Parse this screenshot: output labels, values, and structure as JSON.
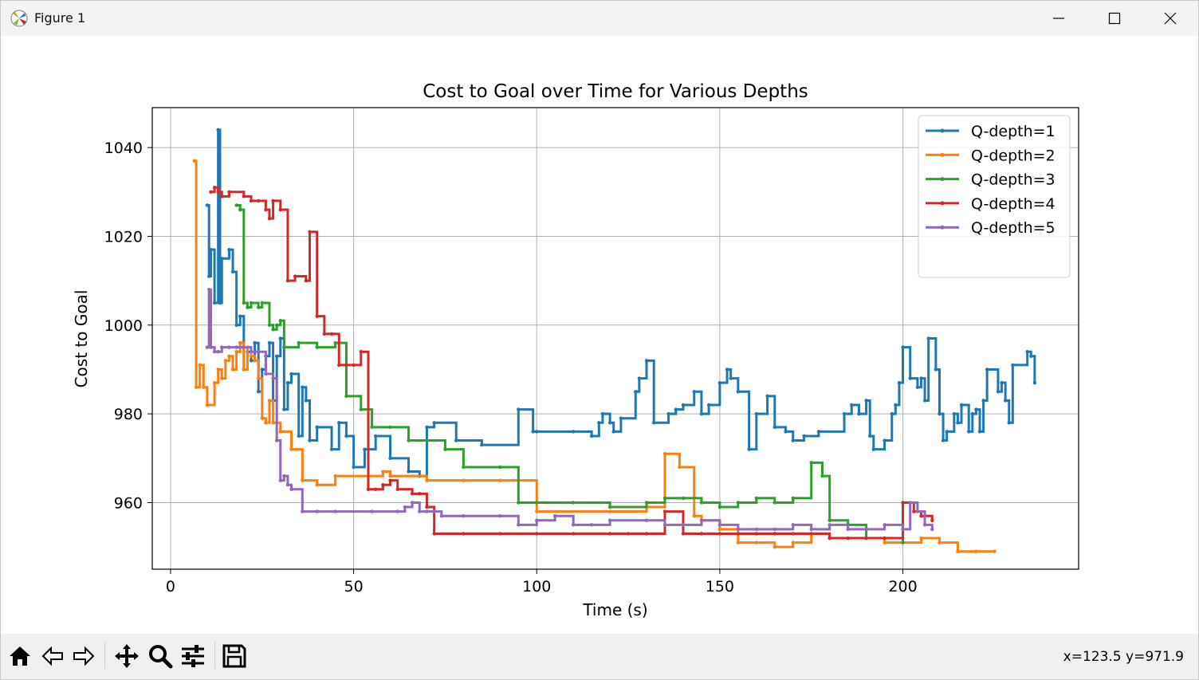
{
  "window": {
    "title": "Figure 1",
    "icons": {
      "app": "matplotlib-icon",
      "minimize": "minimize-icon",
      "maximize": "maximize-icon",
      "close": "close-icon"
    }
  },
  "toolbar": {
    "buttons": [
      "home-icon",
      "back-icon",
      "forward-icon",
      "pan-icon",
      "zoom-icon",
      "configure-subplots-icon",
      "save-icon"
    ],
    "coords": "x=123.5 y=971.9"
  },
  "chart_data": {
    "type": "line",
    "title": "Cost to Goal over Time for Various Depths",
    "xlabel": "Time (s)",
    "ylabel": "Cost to Goal",
    "xlim": [
      -5,
      248
    ],
    "ylim": [
      945,
      1049
    ],
    "xticks": [
      0,
      50,
      100,
      150,
      200
    ],
    "yticks": [
      960,
      980,
      1000,
      1020,
      1040
    ],
    "grid": true,
    "legend_position": "upper right",
    "step": true,
    "series": [
      {
        "name": "Q-depth=1",
        "color": "#1f77b4",
        "x": [
          10,
          10.5,
          11,
          12,
          13,
          13.5,
          14,
          16,
          17,
          18,
          19,
          20,
          21,
          22,
          23,
          24,
          25,
          26,
          27,
          28,
          29,
          30,
          31,
          32,
          33,
          35,
          36,
          37,
          38,
          40,
          44,
          46,
          48,
          50,
          53,
          56,
          60,
          65,
          68,
          70,
          72,
          78,
          85,
          95,
          99,
          100,
          110,
          115,
          117,
          118,
          120,
          121,
          123,
          127,
          128,
          130,
          132,
          136,
          138,
          140,
          143,
          145,
          147,
          150,
          152,
          153,
          155,
          158,
          160,
          163,
          165,
          168,
          170,
          173,
          177,
          184,
          186,
          188,
          190,
          191,
          192,
          195,
          197,
          198,
          199,
          200,
          202,
          204,
          205,
          206,
          207,
          209,
          210,
          211,
          212,
          214,
          215,
          216,
          218,
          219,
          220,
          221,
          222,
          223,
          226,
          227,
          228,
          229,
          230,
          234,
          235,
          236
        ],
        "y": [
          1027,
          1011,
          1017,
          1005,
          1044,
          1005,
          1015,
          1017,
          1012,
          1000,
          1002,
          990,
          994,
          992,
          996,
          985,
          990,
          993,
          996,
          983,
          993,
          997,
          981,
          987,
          989,
          975,
          986,
          983,
          974,
          977,
          972,
          978,
          975,
          968,
          972,
          975,
          970,
          967,
          966,
          977,
          978,
          974,
          973,
          981,
          976,
          976,
          976,
          975,
          978,
          980,
          978,
          976,
          979,
          985,
          988,
          992,
          978,
          980,
          981,
          982,
          985,
          980,
          982,
          987,
          990,
          988,
          985,
          972,
          980,
          984,
          977,
          976,
          974,
          975,
          976,
          980,
          982,
          980,
          983,
          975,
          972,
          974,
          980,
          982,
          987,
          995,
          988,
          986,
          988,
          983,
          997,
          990,
          980,
          974,
          976,
          980,
          978,
          982,
          976,
          980,
          981,
          976,
          983,
          990,
          985,
          987,
          983,
          978,
          991,
          994,
          993,
          987
        ]
      },
      {
        "name": "Q-depth=2",
        "color": "#ff7f0e",
        "x": [
          6.5,
          7,
          8,
          9,
          10,
          12,
          13,
          14,
          15,
          16,
          17,
          18,
          19,
          20,
          21,
          22,
          23,
          24,
          25,
          26,
          27,
          28,
          30,
          33,
          36,
          40,
          45,
          58,
          60,
          70,
          80,
          90,
          95,
          100,
          120,
          130,
          135,
          139,
          143,
          145,
          150,
          155,
          160,
          165,
          170,
          175,
          180,
          190,
          195,
          200,
          205,
          210,
          215,
          220,
          225
        ],
        "y": [
          1037,
          986,
          991,
          986,
          982,
          987,
          990,
          988,
          992,
          993,
          990,
          994,
          996,
          990,
          995,
          993,
          992,
          988,
          979,
          978,
          983,
          978,
          976,
          972,
          965,
          964,
          966,
          967,
          966,
          965,
          965,
          965,
          965,
          958,
          958,
          959,
          971,
          968,
          957,
          956,
          954,
          951,
          951,
          950,
          951,
          953,
          952,
          952,
          951,
          951,
          952,
          951,
          949,
          949,
          949
        ]
      },
      {
        "name": "Q-depth=3",
        "color": "#2ca02c",
        "x": [
          18,
          19,
          20,
          21,
          22,
          24,
          25,
          27,
          28,
          29,
          30,
          31,
          35,
          40,
          45,
          48,
          52,
          55,
          60,
          65,
          70,
          75,
          80,
          90,
          95,
          100,
          110,
          120,
          130,
          135,
          140,
          145,
          150,
          155,
          160,
          165,
          170,
          175,
          178,
          180,
          185,
          190,
          195,
          200
        ],
        "y": [
          1027,
          1026,
          1005,
          1004,
          1005,
          1004,
          1005,
          1000,
          999,
          1000,
          1001,
          995,
          996,
          995,
          996,
          984,
          981,
          977,
          977,
          974,
          974,
          972,
          968,
          968,
          960,
          960,
          960,
          959,
          960,
          961,
          961,
          960,
          959,
          960,
          961,
          960,
          961,
          969,
          966,
          956,
          955,
          952,
          952,
          951
        ]
      },
      {
        "name": "Q-depth=4",
        "color": "#d62728",
        "x": [
          11,
          12,
          13,
          14,
          16,
          20,
          22,
          24,
          26,
          27,
          28,
          30,
          32,
          34,
          37,
          38,
          40,
          42,
          44,
          46,
          48,
          50,
          52,
          54,
          56,
          58,
          60,
          62,
          66,
          68,
          70,
          72,
          80,
          90,
          100,
          110,
          120,
          125,
          130,
          135,
          140,
          145,
          150,
          155,
          160,
          165,
          170,
          175,
          180,
          185,
          190,
          195,
          200,
          203,
          205,
          208
        ],
        "y": [
          1030,
          1031,
          1030,
          1029,
          1030,
          1029,
          1028,
          1028,
          1026,
          1024,
          1028,
          1026,
          1010,
          1011,
          1010,
          1021,
          1002,
          998,
          998,
          991,
          991,
          991,
          994,
          963,
          963,
          964,
          965,
          963,
          962,
          962,
          959,
          953,
          953,
          953,
          953,
          953,
          953,
          953,
          953,
          958,
          953,
          953,
          953,
          953,
          953,
          953,
          953,
          953,
          952,
          952,
          952,
          952,
          960,
          958,
          957,
          956
        ]
      },
      {
        "name": "Q-depth=5",
        "color": "#9467bd",
        "x": [
          10,
          10.5,
          11,
          12,
          13,
          14,
          16,
          18,
          20,
          22,
          24,
          26,
          28,
          29,
          30,
          31,
          32,
          33,
          36,
          40,
          45,
          55,
          62,
          64,
          66,
          68,
          70,
          72,
          74,
          80,
          90,
          95,
          100,
          105,
          110,
          115,
          120,
          130,
          135,
          140,
          145,
          150,
          155,
          160,
          165,
          170,
          175,
          180,
          185,
          190,
          195,
          200,
          202,
          204,
          206,
          208
        ],
        "y": [
          995,
          1008,
          995,
          994,
          994,
          995,
          995,
          995,
          995,
          994,
          994,
          989,
          988,
          974,
          965,
          966,
          964,
          963,
          958,
          958,
          958,
          958,
          958,
          959,
          960,
          958,
          958,
          958,
          957,
          957,
          957,
          955,
          956,
          957,
          955,
          955,
          956,
          956,
          955,
          955,
          956,
          955,
          954,
          954,
          954,
          955,
          954,
          955,
          954,
          954,
          955,
          954,
          960,
          958,
          955,
          954
        ]
      }
    ]
  }
}
